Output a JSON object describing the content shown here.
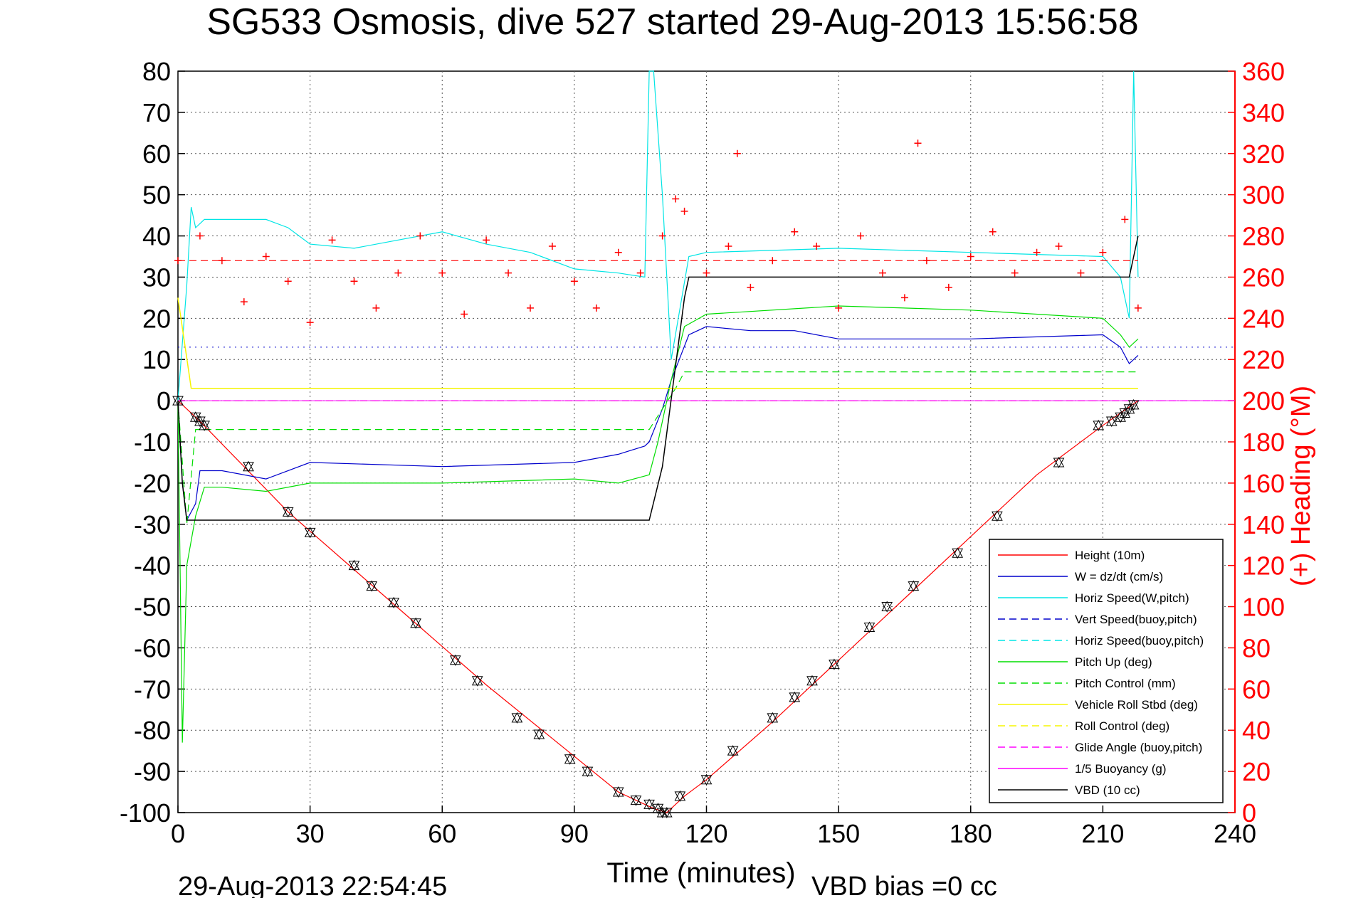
{
  "figure": {
    "title": "SG533 Osmosis, dive 527 started 29-Aug-2013 15:56:58",
    "timestamp": "29-Aug-2013 22:54:45",
    "vbd_bias": "VBD bias =0 cc"
  },
  "chart_data": {
    "type": "line",
    "title": "SG533 Osmosis, dive 527 started 29-Aug-2013 15:56:58",
    "xlabel": "Time (minutes)",
    "ylabel": "",
    "y2label": "(+) Heading (°M)",
    "xlim": [
      0,
      240
    ],
    "ylim": [
      -100,
      80
    ],
    "y2lim": [
      0,
      360
    ],
    "x_ticks": [
      0,
      30,
      60,
      90,
      120,
      150,
      180,
      210,
      240
    ],
    "y_ticks": [
      -100,
      -90,
      -80,
      -70,
      -60,
      -50,
      -40,
      -30,
      -20,
      -10,
      0,
      10,
      20,
      30,
      40,
      50,
      60,
      70,
      80
    ],
    "y2_ticks": [
      0,
      20,
      40,
      60,
      80,
      100,
      120,
      140,
      160,
      180,
      200,
      220,
      240,
      260,
      280,
      300,
      320,
      340,
      360
    ],
    "grid": true,
    "legend_position": "bottom-right",
    "colors": {
      "height": "#ff0000",
      "w": "#0000cc",
      "horiz_speed": "#00e5e5",
      "pitch": "#00dd00",
      "roll": "#f5f500",
      "glide": "#ff00ff",
      "vbd": "#000000",
      "heading": "#ff0000"
    },
    "legend": [
      {
        "name": "Height (10m)",
        "color": "#ff0000",
        "dash": false
      },
      {
        "name": "W = dz/dt (cm/s)",
        "color": "#0000cc",
        "dash": false
      },
      {
        "name": "Horiz Speed(W,pitch)",
        "color": "#00e5e5",
        "dash": false
      },
      {
        "name": "Vert Speed(buoy,pitch)",
        "color": "#0000cc",
        "dash": true
      },
      {
        "name": "Horiz Speed(buoy,pitch)",
        "color": "#00e5e5",
        "dash": true
      },
      {
        "name": "Pitch Up (deg)",
        "color": "#00dd00",
        "dash": false
      },
      {
        "name": "Pitch Control (mm)",
        "color": "#00dd00",
        "dash": true
      },
      {
        "name": "Vehicle Roll Stbd (deg)",
        "color": "#f5f500",
        "dash": false
      },
      {
        "name": "Roll Control (deg)",
        "color": "#f5f500",
        "dash": true
      },
      {
        "name": "Glide Angle (buoy,pitch)",
        "color": "#ff00ff",
        "dash": true
      },
      {
        "name": "1/5 Buoyancy (g)",
        "color": "#ff00ff",
        "dash": false
      },
      {
        "name": "VBD (10 cc)",
        "color": "#000000",
        "dash": false
      }
    ],
    "series": [
      {
        "name": "Height (10m)",
        "x": [
          0,
          5,
          15,
          25,
          40,
          55,
          70,
          85,
          100,
          108,
          111,
          115,
          120,
          135,
          150,
          165,
          180,
          195,
          210,
          218
        ],
        "y": [
          0,
          -5,
          -16,
          -27,
          -41,
          -55,
          -69,
          -82,
          -95,
          -99,
          -100,
          -96,
          -92,
          -78,
          -63,
          -48,
          -33,
          -18,
          -6,
          0
        ]
      },
      {
        "name": "W = dz/dt (cm/s)",
        "x": [
          0,
          1,
          2,
          4,
          5,
          10,
          20,
          30,
          60,
          90,
          100,
          106,
          107,
          110,
          112,
          116,
          120,
          130,
          140,
          150,
          180,
          210,
          214,
          216,
          218
        ],
        "y": [
          0,
          -20,
          -29,
          -25,
          -17,
          -17,
          -19,
          -15,
          -16,
          -15,
          -13,
          -11,
          -10,
          -2,
          5,
          16,
          18,
          17,
          17,
          15,
          15,
          16,
          13,
          9,
          11
        ]
      },
      {
        "name": "Horiz Speed(W,pitch)",
        "x": [
          0,
          2,
          3,
          4,
          6,
          10,
          20,
          25,
          30,
          40,
          60,
          70,
          80,
          90,
          100,
          106,
          107,
          108,
          110,
          112,
          116,
          120,
          150,
          180,
          210,
          214,
          216,
          217,
          218
        ],
        "y": [
          0,
          28,
          47,
          42,
          44,
          44,
          44,
          42,
          38,
          37,
          41,
          38,
          36,
          32,
          31,
          30,
          80,
          80,
          50,
          10,
          35,
          36,
          37,
          36,
          35,
          30,
          20,
          80,
          30
        ]
      },
      {
        "name": "Vert Speed(buoy,pitch)",
        "x": [
          0,
          240
        ],
        "y": [
          13,
          13
        ]
      },
      {
        "name": "Pitch Up (deg)",
        "x": [
          0,
          1,
          2,
          4,
          6,
          10,
          20,
          30,
          60,
          90,
          100,
          107,
          109,
          112,
          115,
          120,
          150,
          180,
          210,
          214,
          216,
          218
        ],
        "y": [
          0,
          -83,
          -40,
          -28,
          -21,
          -21,
          -22,
          -20,
          -20,
          -19,
          -20,
          -18,
          -10,
          5,
          18,
          21,
          23,
          22,
          20,
          16,
          13,
          15
        ]
      },
      {
        "name": "Pitch Control (mm)",
        "x": [
          0,
          2,
          4,
          107,
          110,
          113,
          115,
          218
        ],
        "y": [
          0,
          -30,
          -7,
          -7,
          -2,
          3,
          7,
          7
        ]
      },
      {
        "name": "Vehicle Roll Stbd (deg)",
        "x": [
          0,
          3,
          5,
          218
        ],
        "y": [
          25,
          3,
          3,
          3
        ]
      },
      {
        "name": "Roll Control (deg)",
        "x": [
          0,
          218
        ],
        "y": [
          0,
          0
        ]
      },
      {
        "name": "Glide Angle (buoy,pitch)",
        "x": [
          0,
          240
        ],
        "y": [
          0,
          0
        ]
      },
      {
        "name": "1/5 Buoyancy (g)",
        "x": [
          0,
          240
        ],
        "y": [
          0,
          0
        ]
      },
      {
        "name": "VBD (10 cc)",
        "x": [
          0,
          1,
          2,
          107,
          110,
          115,
          116,
          150,
          200,
          216,
          218
        ],
        "y": [
          0,
          -20,
          -29,
          -29,
          -16,
          25,
          30,
          30,
          30,
          30,
          40
        ]
      },
      {
        "name": "Heading reference",
        "axis": "y2",
        "x": [
          0,
          218
        ],
        "y": [
          268,
          268
        ]
      },
      {
        "name": "Heading",
        "axis": "y2",
        "x": [
          0,
          5,
          10,
          15,
          20,
          25,
          30,
          35,
          40,
          45,
          50,
          55,
          60,
          65,
          70,
          75,
          80,
          85,
          90,
          95,
          100,
          105,
          110,
          113,
          115,
          120,
          125,
          127,
          130,
          135,
          140,
          145,
          150,
          155,
          160,
          165,
          168,
          170,
          175,
          180,
          185,
          190,
          195,
          200,
          205,
          210,
          215,
          218
        ],
        "y": [
          268,
          280,
          268,
          248,
          270,
          258,
          238,
          278,
          258,
          245,
          262,
          280,
          262,
          242,
          278,
          262,
          245,
          275,
          258,
          245,
          272,
          262,
          280,
          298,
          292,
          262,
          275,
          320,
          255,
          268,
          282,
          275,
          245,
          280,
          262,
          250,
          325,
          268,
          255,
          270,
          282,
          262,
          272,
          275,
          262,
          272,
          288,
          245
        ]
      }
    ],
    "markers": {
      "name": "Height (10m) markers",
      "x": [
        0,
        4,
        5,
        6,
        16,
        25,
        30,
        40,
        44,
        49,
        54,
        63,
        68,
        77,
        82,
        89,
        93,
        100,
        104,
        107,
        109,
        110,
        111,
        114,
        120,
        126,
        135,
        140,
        144,
        149,
        157,
        161,
        167,
        177,
        186,
        200,
        209,
        212,
        214,
        215,
        216,
        217
      ],
      "y": [
        0,
        -4,
        -5,
        -6,
        -16,
        -27,
        -32,
        -40,
        -45,
        -49,
        -54,
        -63,
        -68,
        -77,
        -81,
        -87,
        -90,
        -95,
        -97,
        -98,
        -99,
        -100,
        -100,
        -96,
        -92,
        -85,
        -77,
        -72,
        -68,
        -64,
        -55,
        -50,
        -45,
        -37,
        -28,
        -15,
        -6,
        -5,
        -4,
        -3,
        -2,
        -1
      ]
    }
  }
}
